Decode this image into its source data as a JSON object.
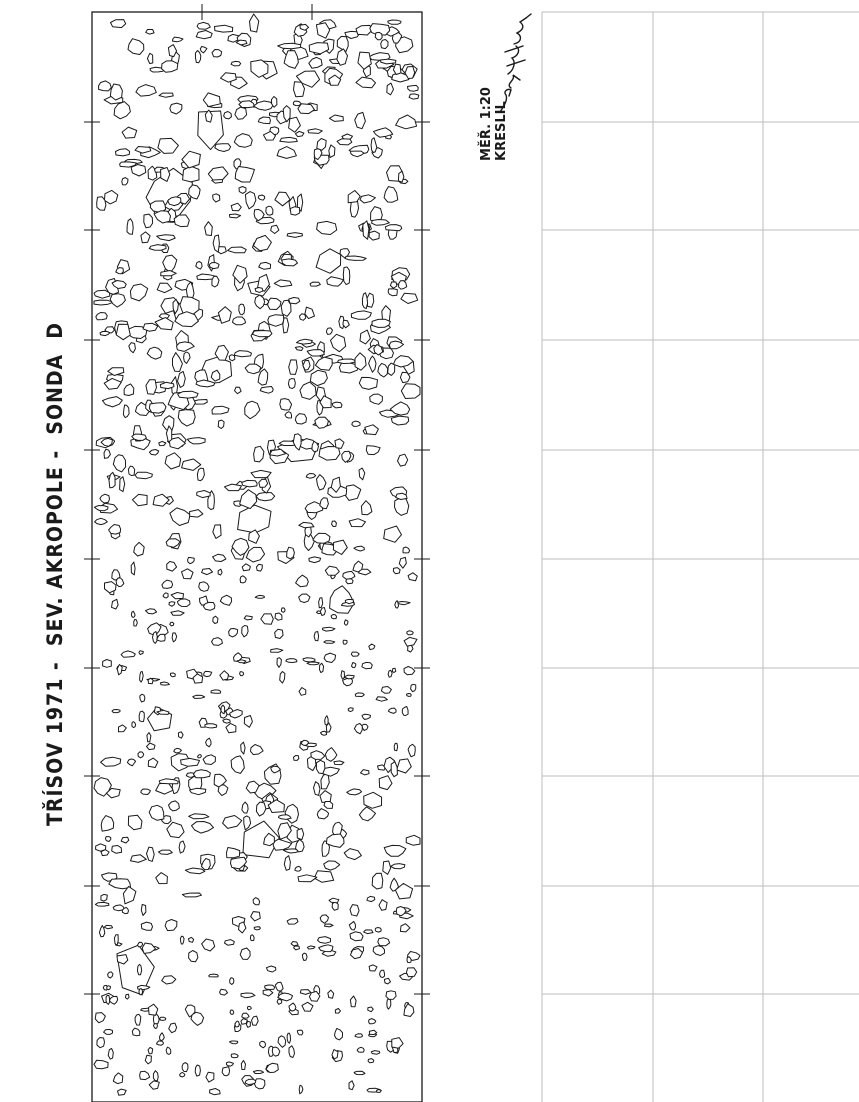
{
  "sheet": {
    "title": "TŘÍSOV 1971 -  SEV. AKROPOLE -  SONDA  D",
    "scale_label": "MĚŘ. 1:20",
    "drawn_by_label": "KRESLIL",
    "signature": "Jiří Waldhauser"
  },
  "section_drawing": {
    "subject": "stone packing of rampart section (stone outlines)",
    "orientation": "rotated 90°"
  },
  "empty_grid": {
    "columns": 3,
    "rows": 10
  },
  "colors": {
    "paper": "#ffffff",
    "ink": "#1a1a1a",
    "grid": "#b5b5b5"
  }
}
